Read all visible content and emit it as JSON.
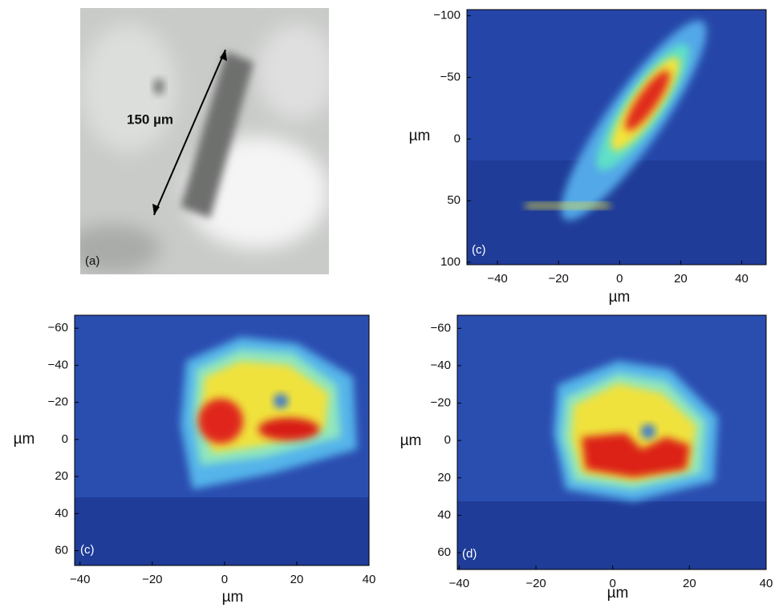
{
  "panels": [
    {
      "label": "(a)",
      "scale_label": "150 µm"
    },
    {
      "label": "(c)",
      "x_label": "µm",
      "y_label": "µm",
      "xlim": [
        -50,
        48
      ],
      "ylim": [
        -105,
        102
      ],
      "xticks": [
        {
          "value": -40,
          "label": "−40"
        },
        {
          "value": -20,
          "label": "−20"
        },
        0,
        20,
        40
      ],
      "yticks": [
        {
          "value": -100,
          "label": "−100"
        },
        {
          "value": -50,
          "label": "−50"
        },
        0,
        50,
        100
      ]
    },
    {
      "label": "(c)",
      "x_label": "µm",
      "y_label": "µm",
      "xlim": [
        -41.5,
        40
      ],
      "ylim": [
        -67,
        68
      ],
      "xticks": [
        {
          "value": -40,
          "label": "−40"
        },
        {
          "value": -20,
          "label": "−20"
        },
        0,
        20,
        40
      ],
      "yticks": [
        {
          "value": -60,
          "label": "−60"
        },
        {
          "value": -40,
          "label": "−40"
        },
        {
          "value": -20,
          "label": "−20"
        },
        0,
        20,
        40,
        60
      ]
    },
    {
      "label": "(d)",
      "x_label": "µm",
      "y_label": "µm",
      "xlim": [
        -40.5,
        40
      ],
      "ylim": [
        -67,
        69
      ],
      "xticks": [
        {
          "value": -40,
          "label": "−40"
        },
        {
          "value": -20,
          "label": "−20"
        },
        0,
        20,
        40
      ],
      "yticks": [
        {
          "value": -60,
          "label": "−60"
        },
        {
          "value": -40,
          "label": "−40"
        },
        {
          "value": -20,
          "label": "−20"
        },
        0,
        20,
        40,
        60
      ]
    }
  ]
}
